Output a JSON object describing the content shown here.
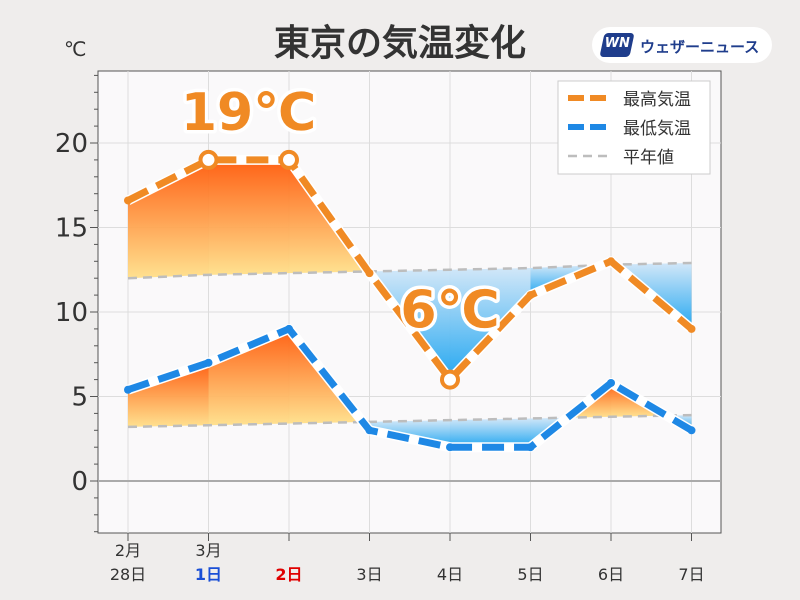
{
  "header": {
    "title": "東京の気温変化",
    "unit": "℃",
    "logo_mark": "WN",
    "logo_text": "ウェザーニュース"
  },
  "colors": {
    "high": "#f08a24",
    "low": "#1e88e5",
    "normal": "#bdbdbd",
    "warm_top": "#ff5a0a",
    "warm_bottom": "#ffe08a",
    "cool_top": "#cfe6f8",
    "cool_bottom": "#19a3f0",
    "annotation": "#f08a24"
  },
  "chart_data": {
    "type": "line",
    "title": "東京の気温変化",
    "ylabel": "℃",
    "ylim": [
      -3,
      24
    ],
    "yticks": [
      0,
      5,
      10,
      15,
      20
    ],
    "grid": true,
    "legend_position": "top-right",
    "categories": [
      {
        "month": "2月",
        "day": "28日",
        "color": "#333333"
      },
      {
        "month": "3月",
        "day": "1日",
        "color": "#1a4fd6"
      },
      {
        "month": "",
        "day": "2日",
        "color": "#e00000"
      },
      {
        "month": "",
        "day": "3日",
        "color": "#333333"
      },
      {
        "month": "",
        "day": "4日",
        "color": "#333333"
      },
      {
        "month": "",
        "day": "5日",
        "color": "#333333"
      },
      {
        "month": "",
        "day": "6日",
        "color": "#333333"
      },
      {
        "month": "",
        "day": "7日",
        "color": "#333333"
      }
    ],
    "series": [
      {
        "name": "最高気温",
        "values": [
          16.6,
          19,
          19,
          12.3,
          6,
          11,
          13,
          9
        ]
      },
      {
        "name": "最低気温",
        "values": [
          5.4,
          7,
          9,
          3,
          2,
          2,
          5.8,
          3
        ]
      },
      {
        "name": "平年値",
        "values": [
          12,
          12.2,
          12.3,
          12.4,
          12.5,
          12.6,
          12.8,
          12.9
        ],
        "group": "high"
      },
      {
        "name": "平年値",
        "values": [
          3.2,
          3.3,
          3.4,
          3.5,
          3.6,
          3.7,
          3.8,
          3.9
        ],
        "group": "low"
      }
    ],
    "annotations": [
      {
        "label": "19℃",
        "series": 0,
        "index": 1
      },
      {
        "label": "6℃",
        "series": 0,
        "index": 4
      }
    ],
    "circled_points": [
      {
        "series": 0,
        "index": 1
      },
      {
        "series": 0,
        "index": 2
      },
      {
        "series": 0,
        "index": 4
      }
    ]
  }
}
